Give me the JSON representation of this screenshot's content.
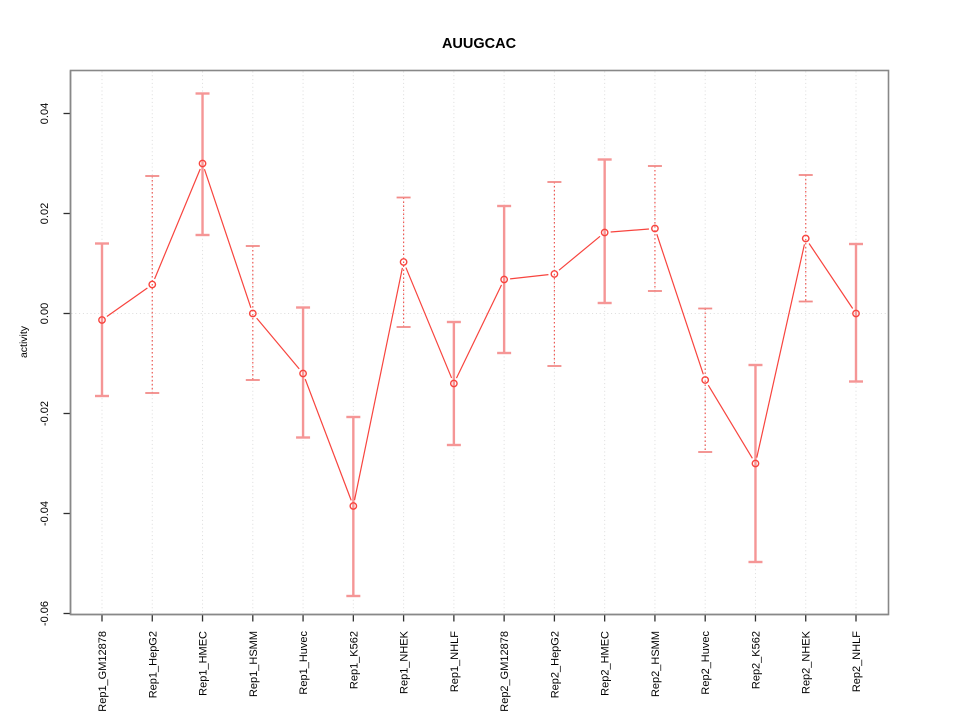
{
  "page": {
    "background": "#ffffff"
  },
  "chart_data": {
    "type": "line",
    "title": "AUUGCAC",
    "xlabel": "",
    "ylabel": "activity",
    "legend": "none",
    "grid": {
      "vertical_dotted_per_category": true,
      "horizontal_dotted_at_zero": true
    },
    "categories": [
      "Rep1_GM12878",
      "Rep1_HepG2",
      "Rep1_HMEC",
      "Rep1_HSMM",
      "Rep1_Huvec",
      "Rep1_K562",
      "Rep1_NHEK",
      "Rep1_NHLF",
      "Rep2_GM12878",
      "Rep2_HepG2",
      "Rep2_HMEC",
      "Rep2_HSMM",
      "Rep2_Huvec",
      "Rep2_K562",
      "Rep2_NHEK",
      "Rep2_NHLF"
    ],
    "series": [
      {
        "name": "activity",
        "marker": "open-circle",
        "values": [
          -0.0013,
          0.0058,
          0.03,
          0.0,
          -0.012,
          -0.0385,
          0.0103,
          -0.014,
          0.0068,
          0.0079,
          0.0162,
          0.017,
          -0.0133,
          -0.03,
          0.015,
          0.0
        ],
        "error_lower": [
          -0.0165,
          -0.0159,
          0.0157,
          -0.0133,
          -0.0248,
          -0.0565,
          -0.0027,
          -0.0263,
          -0.0079,
          -0.0105,
          0.0021,
          0.0045,
          -0.0277,
          -0.0497,
          0.0024,
          -0.0136
        ],
        "error_upper": [
          0.014,
          0.0275,
          0.044,
          0.0135,
          0.0012,
          -0.0207,
          0.0232,
          -0.0017,
          0.0215,
          0.0263,
          0.0308,
          0.0295,
          0.001,
          -0.0103,
          0.0277,
          0.0139
        ],
        "bar_style": [
          "solid",
          "dotted",
          "solid",
          "dotted",
          "solid",
          "solid",
          "dotted",
          "solid",
          "solid",
          "dotted",
          "solid",
          "dotted",
          "dotted",
          "solid",
          "dotted",
          "solid"
        ]
      }
    ],
    "y_ticks": {
      "labels": [
        "0.04",
        "0.02",
        "0.00",
        "-0.02",
        "-0.04",
        "-0.06"
      ],
      "values": [
        0.04,
        0.02,
        0.0,
        -0.02,
        -0.04,
        -0.06
      ]
    },
    "ylim": [
      -0.0602,
      0.0486
    ],
    "colors": {
      "point_line": "#f8443e",
      "error_bar_solid": "#f59696",
      "error_bar_dotted": "#ef5a55",
      "error_bar_cap": "#f28b88",
      "gridline": "#dcdcdc",
      "plot_border": "#888888",
      "axis": "#303030",
      "text": "#000000"
    }
  }
}
